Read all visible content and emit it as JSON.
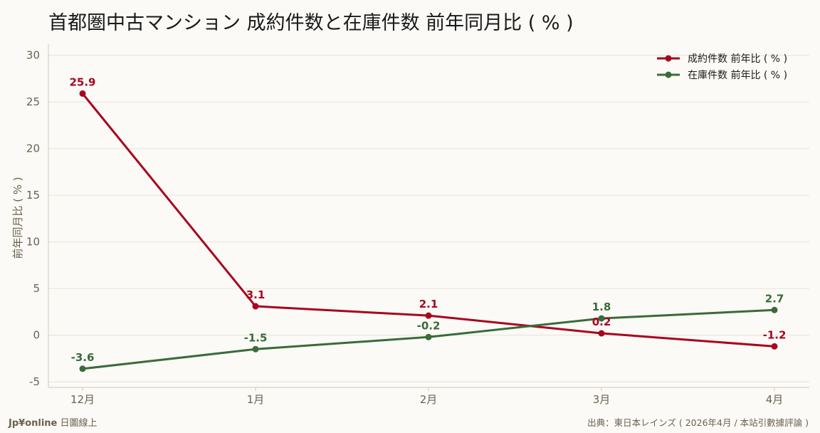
{
  "header": {
    "title": "首都圏中古マンション 成約件数と在庫件数 前年同月比 ( % )"
  },
  "footer": {
    "brand": "Jp¥online",
    "brand_suffix": "日圖線上",
    "source": "出典：東日本レインズ ( 2026年4月 / 本站引數據評論 )"
  },
  "colors": {
    "contract": "#a8051f",
    "inventory": "#3a6b3a",
    "grid": "#e6e2d8",
    "axis": "#cfc9bb",
    "text": "#6b6152"
  },
  "chart_data": {
    "type": "line",
    "title": "首都圏中古マンション 成約件数と在庫件数 前年同月比 ( % )",
    "xlabel": "",
    "ylabel": "前年同月比 ( % )",
    "categories": [
      "12月",
      "1月",
      "2月",
      "3月",
      "4月"
    ],
    "yticks": [
      30,
      25,
      20,
      15,
      10,
      5,
      0,
      -5
    ],
    "ytick_labels": [
      "30",
      "25",
      "20",
      "15",
      "10",
      "5",
      "0",
      "-5"
    ],
    "ylim": [
      -5.6,
      31.2
    ],
    "grid": true,
    "legend_position": "top-right",
    "series": [
      {
        "name": "成約件数 前年比 ( % )",
        "values": [
          25.9,
          3.1,
          2.1,
          0.2,
          -1.2
        ],
        "labels": [
          "25.9",
          "3.1",
          "2.1",
          "0.2",
          "-1.2"
        ],
        "color": "#a8051f"
      },
      {
        "name": "在庫件数 前年比 ( % )",
        "values": [
          -3.6,
          -1.5,
          -0.2,
          1.8,
          2.7
        ],
        "labels": [
          "-3.6",
          "-1.5",
          "-0.2",
          "1.8",
          "2.7"
        ],
        "color": "#3a6b3a"
      }
    ]
  }
}
